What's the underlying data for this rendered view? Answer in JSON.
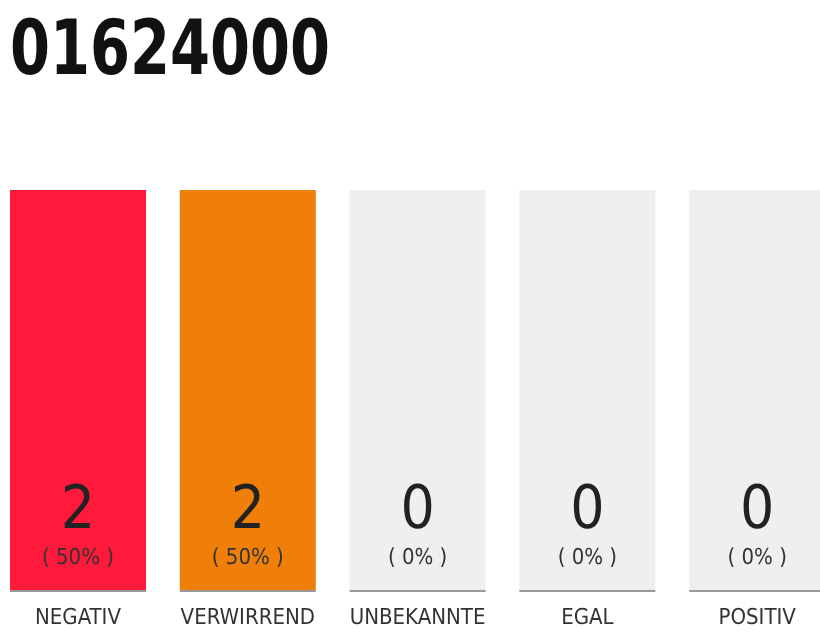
{
  "chart_data": {
    "type": "bar",
    "title": "01624000",
    "categories": [
      "NEGATIV",
      "VERWIRREND",
      "UNBEKANNTE",
      "EGAL",
      "POSITIV"
    ],
    "stacked": true,
    "series": [
      {
        "values": [
          2,
          2,
          0,
          0,
          0
        ],
        "colors": [
          "#ff1a3c",
          "#f07f0a",
          "#efefef",
          "#efefef",
          "#efefef"
        ],
        "value_labels": [
          "2",
          "2",
          null,
          null,
          null
        ]
      },
      {
        "values": [
          0,
          0,
          2,
          2,
          2
        ],
        "color": "#efefef",
        "value_labels": [
          null,
          null,
          null,
          null,
          null
        ]
      }
    ],
    "ylim": [
      0,
      2
    ],
    "tick_labels": "x",
    "annotations": [
      "( 50% )",
      "( 50% )",
      "( 0% )",
      "( 0% )",
      "( 0% )",
      {
        "text": "0",
        "x": "UNBEKANNTE",
        "y": 0
      },
      {
        "text": "0",
        "x": "EGAL",
        "y": 0
      },
      {
        "text": "0",
        "x": "POSITIV",
        "y": 0
      }
    ]
  }
}
